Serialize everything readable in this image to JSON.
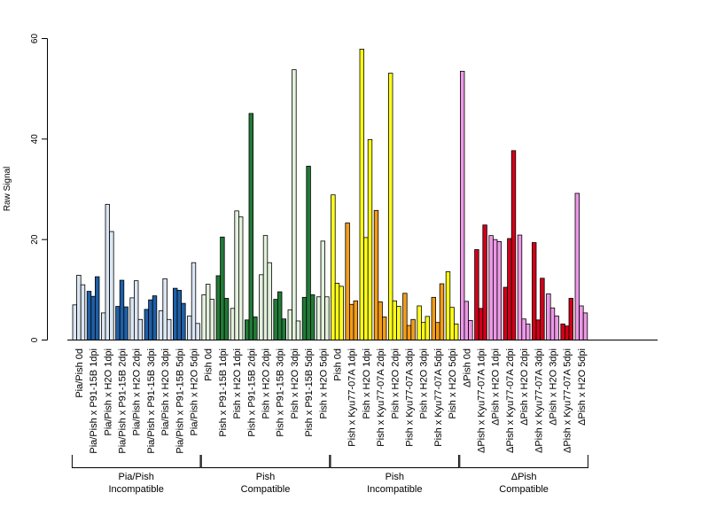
{
  "chart_data": {
    "type": "bar",
    "ylabel": "Raw Signal",
    "ylim": [
      0,
      60
    ],
    "yticks": [
      0,
      20,
      40,
      60
    ],
    "grid": false,
    "bars_per_category": 3,
    "colors": {
      "light_blue": "#dbe6f3",
      "dark_blue": "#1f5fa6",
      "light_green": "#e2f0dc",
      "dark_green": "#217a37",
      "yellow": "#ffff1a",
      "orange": "#f39c18",
      "pink": "#ec98e6",
      "red": "#d1001a"
    },
    "categories": [
      "Pia/Pish 0d",
      "Pia/Pish x P91-15B 1dpi",
      "Pia/Pish x H2O 1dpi",
      "Pia/Pish x P91-15B 2dpi",
      "Pia/Pish x H2O 2dpi",
      "Pia/Pish x P91-15B 3dpi",
      "Pia/Pish x H2O 3dpi",
      "Pia/Pish x P91-15B 5dpi",
      "Pia/Pish x H2O 5dpi",
      "Pish 0d",
      "Pish x P91-15B 1dpi",
      "Pish x H2O 1dpi",
      "Pish x P91-15B 2dpi",
      "Pish x H2O 2dpi",
      "Pish x P91-15B 3dpi",
      "Pish x H2O 3dpi",
      "Pish x P91-15B 5dpi",
      "Pish x H2O 5dpi",
      "Pish 0d",
      "Pish x Kyu77-07A 1dpi",
      "Pish x H2O 1dpi",
      "Pish x Kyu77-07A 2dpi",
      "Pish x H2O 2dpi",
      "Pish x Kyu77-07A 3dpi",
      "Pish x H2O 3dpi",
      "Pish x Kyu77-07A 5dpi",
      "Pish x H2O 5dpi",
      "ΔPish 0d",
      "ΔPish x Kyu77-07A 1dpi",
      "ΔPish x H2O 1dpi",
      "ΔPish x Kyu77-07A 2dpi",
      "ΔPish x H2O 2dpi",
      "ΔPish x Kyu77-07A 3dpi",
      "ΔPish x H2O 3dpi",
      "ΔPish x Kyu77-07A 5dpi",
      "ΔPish x H2O 5dpi"
    ],
    "bar_colors": [
      "light_blue",
      "dark_blue",
      "light_blue",
      "dark_blue",
      "light_blue",
      "dark_blue",
      "light_blue",
      "dark_blue",
      "light_blue",
      "light_green",
      "dark_green",
      "light_green",
      "dark_green",
      "light_green",
      "dark_green",
      "light_green",
      "dark_green",
      "light_green",
      "yellow",
      "orange",
      "yellow",
      "orange",
      "yellow",
      "orange",
      "yellow",
      "orange",
      "yellow",
      "pink",
      "red",
      "pink",
      "red",
      "pink",
      "red",
      "pink",
      "red",
      "pink"
    ],
    "values": [
      [
        7.0,
        12.9,
        11.0
      ],
      [
        9.7,
        8.7,
        12.6
      ],
      [
        5.4,
        27.0,
        21.6
      ],
      [
        6.7,
        11.9,
        6.6
      ],
      [
        8.4,
        11.8,
        4.1
      ],
      [
        6.1,
        8.0,
        8.8
      ],
      [
        5.8,
        12.2,
        4.1
      ],
      [
        10.3,
        9.9,
        7.3
      ],
      [
        4.8,
        15.4,
        3.3
      ],
      [
        9.0,
        11.1,
        8.1
      ],
      [
        12.8,
        20.5,
        8.3
      ],
      [
        6.3,
        25.7,
        24.5
      ],
      [
        4.0,
        45.1,
        4.6
      ],
      [
        13.0,
        20.8,
        15.4
      ],
      [
        8.1,
        9.6,
        4.2
      ],
      [
        6.0,
        53.8,
        3.8
      ],
      [
        8.5,
        34.6,
        9.0
      ],
      [
        8.6,
        19.7,
        8.6
      ],
      [
        28.9,
        11.3,
        10.7
      ],
      [
        23.3,
        7.1,
        7.8
      ],
      [
        57.9,
        20.4,
        39.9
      ],
      [
        25.8,
        7.6,
        4.6
      ],
      [
        53.1,
        7.8,
        6.7
      ],
      [
        9.3,
        2.9,
        4.1
      ],
      [
        6.8,
        3.5,
        4.7
      ],
      [
        8.5,
        3.5,
        11.2
      ],
      [
        13.6,
        6.5,
        3.2
      ],
      [
        53.5,
        7.7,
        3.9
      ],
      [
        18.0,
        6.3,
        22.9
      ],
      [
        20.8,
        20.0,
        19.6
      ],
      [
        10.5,
        20.2,
        37.7
      ],
      [
        20.9,
        4.2,
        3.2
      ],
      [
        19.4,
        4.0,
        12.3
      ],
      [
        9.2,
        6.4,
        4.8
      ],
      [
        3.2,
        2.8,
        8.3
      ],
      [
        29.2,
        6.8,
        5.4
      ]
    ],
    "groups": [
      {
        "line1": "Pia/Pish",
        "line2": "Incompatible",
        "start": 0,
        "end": 8
      },
      {
        "line1": "Pish",
        "line2": "Compatible",
        "start": 9,
        "end": 17
      },
      {
        "line1": "Pish",
        "line2": "Incompatible",
        "start": 18,
        "end": 26
      },
      {
        "line1": "ΔPish",
        "line2": "Compatible",
        "start": 27,
        "end": 35
      }
    ]
  }
}
